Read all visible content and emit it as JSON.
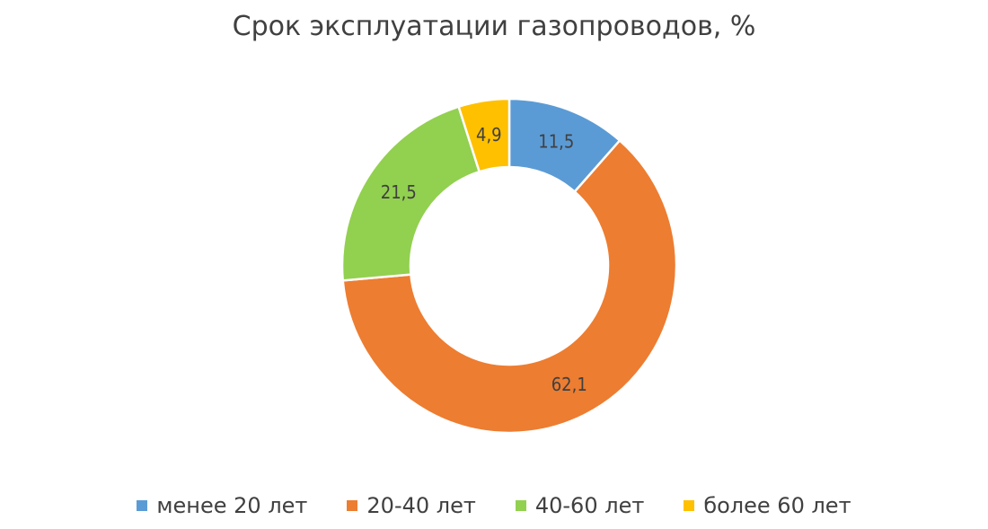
{
  "chart_data": {
    "type": "pie",
    "variant": "donut",
    "title": "Срок эксплуатации газопроводов, %",
    "categories": [
      "менее 20 лет",
      "20-40 лет",
      "40-60 лет",
      "более 60 лет"
    ],
    "values": [
      11.5,
      62.1,
      21.5,
      4.9
    ],
    "value_labels": [
      "11,5",
      "62,1",
      "21,5",
      "4,9"
    ],
    "colors": [
      "#5B9BD5",
      "#ED7D31",
      "#92D050",
      "#FFC000"
    ],
    "legend_position": "bottom"
  }
}
